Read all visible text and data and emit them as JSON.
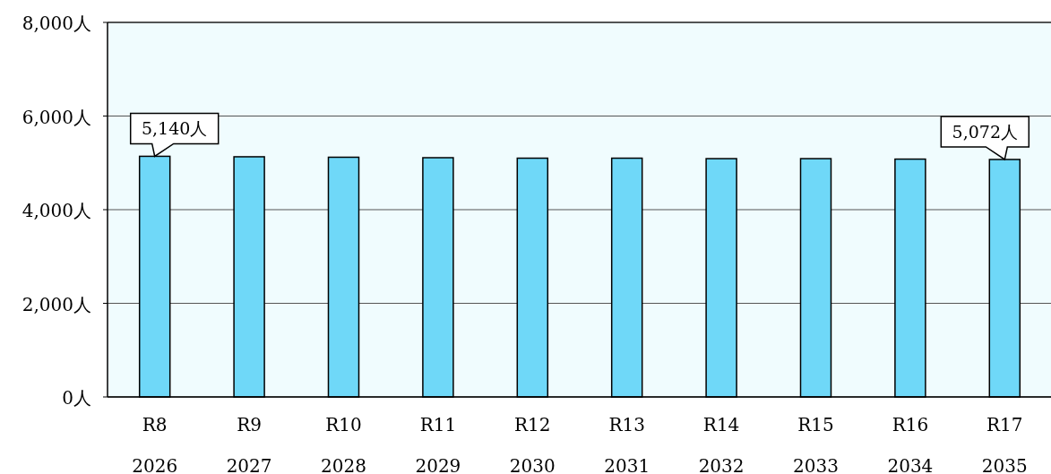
{
  "chart_data": {
    "type": "bar",
    "categories": [
      "R8\n2026",
      "R9\n2027",
      "R10\n2028",
      "R11\n2029",
      "R12\n2030",
      "R13\n2031",
      "R14\n2032",
      "R15\n2033",
      "R16\n2034",
      "R17\n2035"
    ],
    "values": [
      5140,
      5130,
      5120,
      5110,
      5100,
      5100,
      5090,
      5090,
      5080,
      5072
    ],
    "color": "#6fd8f8",
    "ylim": [
      0,
      8000
    ],
    "yticks": [
      {
        "value": 0,
        "label": "0人"
      },
      {
        "value": 2000,
        "label": "2,000人"
      },
      {
        "value": 4000,
        "label": "4,000人"
      },
      {
        "value": 6000,
        "label": "6,000人"
      },
      {
        "value": 8000,
        "label": "8,000人"
      }
    ],
    "grid": "y",
    "value_labels": [
      "5,140人",
      null,
      null,
      null,
      null,
      null,
      null,
      null,
      null,
      "5,072人"
    ]
  }
}
